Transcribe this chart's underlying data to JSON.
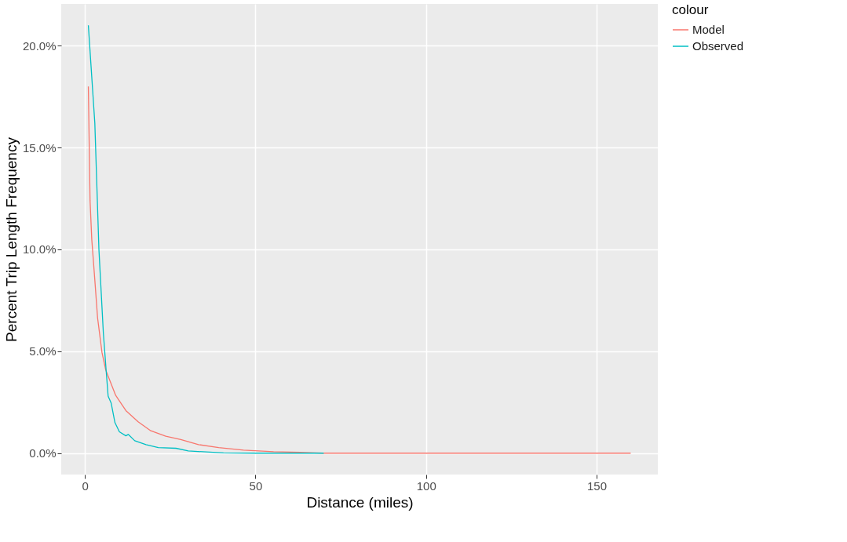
{
  "chart_data": {
    "type": "line",
    "xlabel": "Distance (miles)",
    "ylabel": "Percent Trip Length Frequency",
    "legend_title": "colour",
    "legend": "right",
    "grid": true,
    "line_style": "solid",
    "marker": "none",
    "xlim": [
      -6.95,
      167.95
    ],
    "xticks": [
      0,
      50,
      100,
      150
    ],
    "ylim": [
      -1.05,
      22.05
    ],
    "yticks": [
      {
        "value": 0,
        "label": "0.0%"
      },
      {
        "value": 5,
        "label": "5.0%"
      },
      {
        "value": 10,
        "label": "10.0%"
      },
      {
        "value": 15,
        "label": "15.0%"
      },
      {
        "value": 20,
        "label": "20.0%"
      }
    ],
    "series": [
      {
        "name": "Model",
        "color": "#f8766d",
        "x": [
          1,
          1.5,
          2,
          2.9,
          3.7,
          5,
          6.1,
          9,
          12,
          15.6,
          19.3,
          23.7,
          28.1,
          33.3,
          39.2,
          46.5,
          55.3,
          63,
          70,
          160
        ],
        "values": [
          18.0,
          12.4,
          10.5,
          8.5,
          6.65,
          4.94,
          4.08,
          2.84,
          2.09,
          1.54,
          1.1,
          0.83,
          0.67,
          0.42,
          0.27,
          0.15,
          0.07,
          0.04,
          0.0,
          0.0
        ]
      },
      {
        "name": "Observed",
        "color": "#00bfc4",
        "x": [
          1,
          2.9,
          4.1,
          5.4,
          6.2,
          6.8,
          7.7,
          8.8,
          10.1,
          12,
          12.7,
          14.6,
          17.9,
          21.5,
          26.7,
          30.3,
          40.6,
          50,
          70
        ],
        "values": [
          21.0,
          16.2,
          10.0,
          5.9,
          4.1,
          2.8,
          2.45,
          1.5,
          1.05,
          0.85,
          0.92,
          0.61,
          0.42,
          0.27,
          0.24,
          0.11,
          0.01,
          0.0,
          0.0
        ]
      }
    ]
  }
}
